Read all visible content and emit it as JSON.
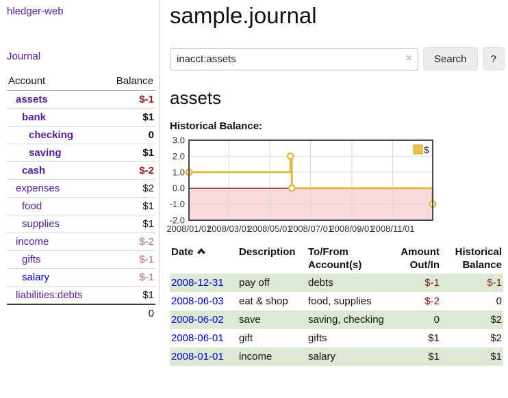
{
  "sidebar": {
    "brand": "hledger-web",
    "nav": {
      "journal": "Journal"
    },
    "accounts_table": {
      "col_account": "Account",
      "col_balance": "Balance",
      "rows": [
        {
          "name": "assets",
          "balance": "$-1",
          "level": 1,
          "bold": true,
          "balance_style": "negstrong"
        },
        {
          "name": "bank",
          "balance": "$1",
          "level": 2,
          "bold": true,
          "balance_style": "pos"
        },
        {
          "name": "checking",
          "balance": "0",
          "level": 3,
          "bold": true,
          "balance_style": "pos"
        },
        {
          "name": "saving",
          "balance": "$1",
          "level": 3,
          "bold": true,
          "balance_style": "pos"
        },
        {
          "name": "cash",
          "balance": "$-2",
          "level": 2,
          "bold": true,
          "balance_style": "negstrong"
        },
        {
          "name": "expenses",
          "balance": "$2",
          "level": 1,
          "bold": false,
          "balance_style": "pos"
        },
        {
          "name": "food",
          "balance": "$1",
          "level": 2,
          "bold": false,
          "balance_style": "pos"
        },
        {
          "name": "supplies",
          "balance": "$1",
          "level": 2,
          "bold": false,
          "balance_style": "pos"
        },
        {
          "name": "income",
          "balance": "$-2",
          "level": 1,
          "bold": false,
          "balance_style": "negsoft"
        },
        {
          "name": "gifts",
          "balance": "$-1",
          "level": 2,
          "bold": false,
          "balance_style": "negsoft"
        },
        {
          "name": "salary",
          "balance": "$-1",
          "level": 2,
          "bold": false,
          "balance_style": "negsoft",
          "link_style": "blue"
        },
        {
          "name": "liabilities:debts",
          "balance": "$1",
          "level": 1,
          "bold": false,
          "balance_style": "pos"
        }
      ],
      "total": "0"
    }
  },
  "main": {
    "title": "sample.journal",
    "search": {
      "value": "inacct:assets",
      "clear_icon": "×",
      "search_button": "Search",
      "help_button": "?"
    },
    "account_heading": "assets",
    "chart_title": "Historical Balance:"
  },
  "chart_data": {
    "type": "line",
    "step": true,
    "title": "Historical Balance",
    "series": [
      {
        "name": "$",
        "points": [
          {
            "date": "2008-01-01",
            "value": 1
          },
          {
            "date": "2008-06-01",
            "value": 2
          },
          {
            "date": "2008-06-03",
            "value": 0
          },
          {
            "date": "2008-12-31",
            "value": -1
          }
        ]
      }
    ],
    "x_domain": [
      "2008-01-01",
      "2008-12-31"
    ],
    "x_ticks": [
      "2008/01/01",
      "2008/03/01",
      "2008/05/01",
      "2008/07/01",
      "2008/09/01",
      "2008/11/01"
    ],
    "y_ticks": [
      3.0,
      2.0,
      1.0,
      0.0,
      -1.0,
      -2.0
    ],
    "ylim": [
      -2,
      3
    ],
    "legend": {
      "label": "$",
      "position": "top-right"
    },
    "colors": {
      "line": "#e0ba45",
      "marker_fill": "#ffffff",
      "negative_region": "#f9dada",
      "zero_line": "#8b0000",
      "grid": "#dadada",
      "frame": "#4a4a4a",
      "legend_fill": "#eac545",
      "legend_border": "#c8a228",
      "axis_text": "#333333"
    }
  },
  "register": {
    "headers": {
      "date": "Date",
      "description": "Description",
      "account": "To/From Account(s)",
      "amount": "Amount Out/In",
      "balance": "Historical Balance"
    },
    "rows": [
      {
        "date": "2008-12-31",
        "description": "pay off",
        "accounts": "debts",
        "amount": "$-1",
        "amount_style": "neg",
        "balance": "$-1",
        "balance_style": "neg"
      },
      {
        "date": "2008-06-03",
        "description": "eat & shop",
        "accounts": "food, supplies",
        "amount": "$-2",
        "amount_style": "neg",
        "balance": "0",
        "balance_style": "pos"
      },
      {
        "date": "2008-06-02",
        "description": "save",
        "accounts": "saving, checking",
        "amount": "0",
        "amount_style": "pos",
        "balance": "$2",
        "balance_style": "pos"
      },
      {
        "date": "2008-06-01",
        "description": "gift",
        "accounts": "gifts",
        "amount": "$1",
        "amount_style": "pos",
        "balance": "$2",
        "balance_style": "pos"
      },
      {
        "date": "2008-01-01",
        "description": "income",
        "accounts": "salary",
        "amount": "$1",
        "amount_style": "pos",
        "balance": "$1",
        "balance_style": "pos"
      }
    ]
  }
}
